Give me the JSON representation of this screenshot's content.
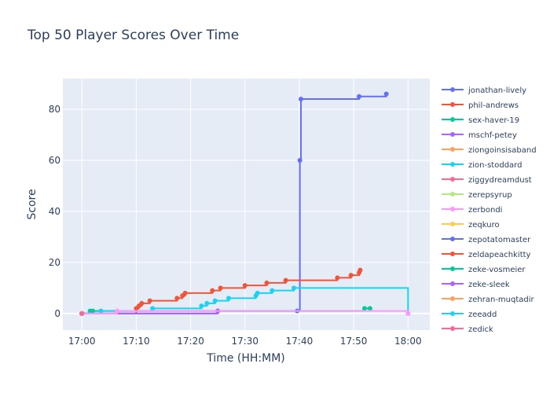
{
  "chart_data": {
    "type": "line",
    "title": "Top 50 Player Scores Over Time",
    "xlabel": "Time (HH:MM)",
    "ylabel": "Score",
    "x_ticks": [
      "17:00",
      "17:10",
      "17:20",
      "17:30",
      "17:40",
      "17:50",
      "18:00"
    ],
    "y_ticks": [
      0,
      20,
      40,
      60,
      80
    ],
    "xlim": [
      "16:56.5",
      "18:04"
    ],
    "ylim": [
      -6.5,
      92
    ],
    "line_shape": "step (hold previous value)",
    "grid": true,
    "legend_position": "right",
    "colors": {
      "plot_bg": "#e5ecf6",
      "grid": "#ffffff",
      "text": "#2a3f5f"
    },
    "series": [
      {
        "name": "jonathan-lively",
        "color": "#636efa",
        "x": [
          "17:00",
          "17:25",
          "17:39.6",
          "17:40.1",
          "17:40.3",
          "17:51",
          "17:56"
        ],
        "y": [
          0,
          1,
          1,
          60,
          84,
          85,
          86
        ]
      },
      {
        "name": "phil-andrews",
        "color": "#ef553b",
        "x": [
          "17:00",
          "17:10",
          "17:10.5",
          "17:11",
          "17:12.5",
          "17:17.5",
          "17:18.5",
          "17:19",
          "17:24",
          "17:25.5",
          "17:30",
          "17:34",
          "17:37.5",
          "17:47",
          "17:49.5",
          "17:51",
          "17:51.2"
        ],
        "y": [
          0,
          2,
          3,
          4,
          5,
          6,
          7,
          8,
          9,
          10,
          11,
          12,
          13,
          14,
          15,
          16,
          17
        ]
      },
      {
        "name": "sex-haver-19",
        "color": "#00cc96",
        "x": [
          "17:00",
          "17:01.5",
          "17:02",
          "17:52",
          "17:53"
        ],
        "y": [
          0,
          1,
          1,
          2,
          2
        ]
      },
      {
        "name": "mschf-petey",
        "color": "#ab63fa",
        "x": [
          "17:00",
          "17:25"
        ],
        "y": [
          0,
          1
        ]
      },
      {
        "name": "ziongoinsisaband",
        "color": "#ffa15a",
        "x": [
          "17:00"
        ],
        "y": [
          0
        ]
      },
      {
        "name": "zion-stoddard",
        "color": "#19d3f3",
        "x": [
          "17:00",
          "17:03.5",
          "17:13",
          "17:22",
          "17:23",
          "17:24.5",
          "17:27",
          "17:32",
          "17:32.3",
          "17:35",
          "17:39",
          "18:00"
        ],
        "y": [
          0,
          1,
          2,
          3,
          4,
          5,
          6,
          7,
          8,
          9,
          10,
          0
        ]
      },
      {
        "name": "ziggydreamdust",
        "color": "#ff6692",
        "x": [
          "17:00"
        ],
        "y": [
          0
        ]
      },
      {
        "name": "zerepsyrup",
        "color": "#b6e880",
        "x": [
          "17:00"
        ],
        "y": [
          0
        ]
      },
      {
        "name": "zerbondi",
        "color": "#ff97ff",
        "x": [
          "17:00",
          "17:06.5",
          "18:00"
        ],
        "y": [
          0,
          1,
          0
        ]
      },
      {
        "name": "zeqkuro",
        "color": "#fecb52",
        "x": [
          "17:00"
        ],
        "y": [
          0
        ]
      },
      {
        "name": "zepotatomaster",
        "color": "#636efa",
        "x": [
          "17:00"
        ],
        "y": [
          0
        ]
      },
      {
        "name": "zeldapeachkitty",
        "color": "#ef553b",
        "x": [
          "17:00"
        ],
        "y": [
          0
        ]
      },
      {
        "name": "zeke-vosmeier",
        "color": "#00cc96",
        "x": [
          "17:00"
        ],
        "y": [
          0
        ]
      },
      {
        "name": "zeke-sleek",
        "color": "#ab63fa",
        "x": [
          "17:00"
        ],
        "y": [
          0
        ]
      },
      {
        "name": "zehran-muqtadir",
        "color": "#ffa15a",
        "x": [
          "17:00"
        ],
        "y": [
          0
        ]
      },
      {
        "name": "zeeadd",
        "color": "#19d3f3",
        "x": [
          "17:00"
        ],
        "y": [
          0
        ]
      },
      {
        "name": "zedick",
        "color": "#ff6692",
        "x": [
          "17:00"
        ],
        "y": [
          0
        ]
      }
    ]
  }
}
